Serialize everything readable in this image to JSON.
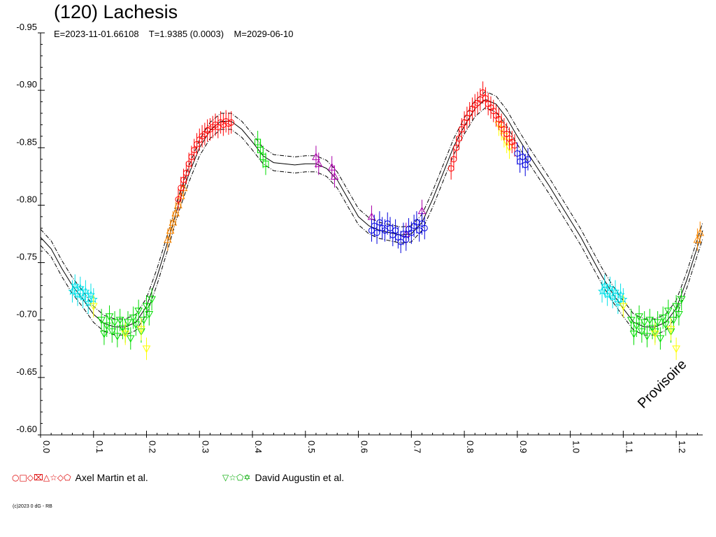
{
  "chart_data": {
    "type": "scatter",
    "title": "(120) Lachesis",
    "subtitle": "E=2023-11-01.66108    T=1.9385 (0.0003)    M=2029-06-10",
    "xlim": [
      0.0,
      1.25
    ],
    "ylim": [
      -0.95,
      -0.6
    ],
    "y_reversed": true,
    "x_ticks": [
      "0.0",
      "0.1",
      "0.2",
      "0.3",
      "0.4",
      "0.5",
      "0.6",
      "0.7",
      "0.8",
      "0.9",
      "1.0",
      "1.1",
      "1.2"
    ],
    "x_tick_values": [
      0.0,
      0.1,
      0.2,
      0.3,
      0.4,
      0.5,
      0.6,
      0.7,
      0.8,
      0.9,
      1.0,
      1.1,
      1.2
    ],
    "y_ticks": [
      "-0.95",
      "-0.90",
      "-0.85",
      "-0.80",
      "-0.75",
      "-0.70",
      "-0.65",
      "-0.60"
    ],
    "y_tick_values": [
      -0.95,
      -0.9,
      -0.85,
      -0.8,
      -0.75,
      -0.7,
      -0.65,
      -0.6
    ],
    "fit_curve": {
      "x": [
        0.0,
        0.02,
        0.04,
        0.06,
        0.08,
        0.1,
        0.12,
        0.14,
        0.16,
        0.18,
        0.2,
        0.22,
        0.24,
        0.26,
        0.28,
        0.3,
        0.32,
        0.34,
        0.36,
        0.38,
        0.4,
        0.42,
        0.44,
        0.46,
        0.48,
        0.5,
        0.52,
        0.54,
        0.56,
        0.58,
        0.6,
        0.62,
        0.64,
        0.66,
        0.68,
        0.7,
        0.72,
        0.74,
        0.76,
        0.78,
        0.8,
        0.82,
        0.84,
        0.86,
        0.88,
        0.9,
        0.92,
        0.94,
        0.96,
        0.98,
        1.0,
        1.02,
        1.04,
        1.06,
        1.08,
        1.1,
        1.12,
        1.14,
        1.16,
        1.18,
        1.2,
        1.22,
        1.25
      ],
      "y": [
        -0.772,
        -0.762,
        -0.745,
        -0.73,
        -0.718,
        -0.705,
        -0.697,
        -0.694,
        -0.694,
        -0.698,
        -0.712,
        -0.738,
        -0.768,
        -0.8,
        -0.827,
        -0.85,
        -0.865,
        -0.873,
        -0.873,
        -0.866,
        -0.855,
        -0.843,
        -0.837,
        -0.836,
        -0.835,
        -0.836,
        -0.836,
        -0.832,
        -0.822,
        -0.806,
        -0.79,
        -0.782,
        -0.778,
        -0.776,
        -0.774,
        -0.775,
        -0.785,
        -0.805,
        -0.828,
        -0.851,
        -0.869,
        -0.884,
        -0.892,
        -0.888,
        -0.876,
        -0.86,
        -0.845,
        -0.831,
        -0.817,
        -0.802,
        -0.787,
        -0.772,
        -0.755,
        -0.738,
        -0.723,
        -0.71,
        -0.698,
        -0.694,
        -0.694,
        -0.698,
        -0.71,
        -0.735,
        -0.778
      ],
      "band": 0.007
    },
    "series": [
      {
        "name": "Axel Martin et al.",
        "color": "#00e0e8",
        "marker": "star",
        "x": [
          0.06,
          0.065,
          0.07,
          0.075,
          0.08,
          0.085,
          0.09,
          0.095,
          0.1,
          1.06,
          1.065,
          1.07,
          1.075,
          1.08,
          1.085,
          1.09,
          1.095,
          1.1
        ],
        "y": [
          -0.725,
          -0.73,
          -0.722,
          -0.728,
          -0.72,
          -0.725,
          -0.715,
          -0.722,
          -0.718,
          -0.725,
          -0.73,
          -0.722,
          -0.728,
          -0.72,
          -0.725,
          -0.715,
          -0.722,
          -0.718
        ]
      },
      {
        "name": "David Augustin et al.",
        "color": "#00dd00",
        "marker": "tri-down",
        "x": [
          0.115,
          0.12,
          0.125,
          0.13,
          0.135,
          0.14,
          0.145,
          0.15,
          0.155,
          0.16,
          0.165,
          0.17,
          0.175,
          0.18,
          0.185,
          0.19,
          0.195,
          0.2,
          0.205,
          0.21,
          1.115,
          1.12,
          1.125,
          1.13,
          1.135,
          1.14,
          1.145,
          1.15,
          1.155,
          1.16,
          1.165,
          1.17,
          1.175,
          1.18,
          1.185,
          1.19,
          1.195,
          1.2,
          1.205,
          1.21
        ],
        "y": [
          -0.7,
          -0.688,
          -0.695,
          -0.703,
          -0.69,
          -0.698,
          -0.686,
          -0.7,
          -0.693,
          -0.69,
          -0.698,
          -0.684,
          -0.702,
          -0.696,
          -0.708,
          -0.69,
          -0.7,
          -0.712,
          -0.705,
          -0.718,
          -0.7,
          -0.688,
          -0.695,
          -0.703,
          -0.69,
          -0.698,
          -0.686,
          -0.7,
          -0.693,
          -0.69,
          -0.698,
          -0.684,
          -0.702,
          -0.696,
          -0.708,
          -0.69,
          -0.7,
          -0.712,
          -0.705,
          -0.718
        ]
      },
      {
        "name": "Axel Martin et al.",
        "color": "#ffff00",
        "marker": "tri-down",
        "x": [
          0.1,
          0.16,
          0.19,
          0.2,
          0.865,
          0.87,
          0.875,
          0.88,
          0.885,
          1.1,
          1.16,
          1.19,
          1.2
        ],
        "y": [
          -0.712,
          -0.688,
          -0.692,
          -0.675,
          -0.87,
          -0.866,
          -0.86,
          -0.855,
          -0.85,
          -0.712,
          -0.688,
          -0.692,
          -0.675
        ]
      },
      {
        "name": "Axel Martin et al.",
        "color": "#ff8800",
        "marker": "tri-up",
        "x": [
          0.24,
          0.245,
          0.25,
          0.255,
          0.26,
          0.265,
          0.27,
          1.24,
          1.245
        ],
        "y": [
          -0.77,
          -0.778,
          -0.785,
          -0.793,
          -0.8,
          -0.808,
          -0.815,
          -0.77,
          -0.776
        ]
      },
      {
        "name": "Axel Martin et al.",
        "color": "#ff0000",
        "marker": "circle",
        "x": [
          0.26,
          0.265,
          0.27,
          0.275,
          0.28,
          0.285,
          0.29,
          0.295,
          0.3,
          0.305,
          0.31,
          0.315,
          0.32,
          0.325,
          0.33,
          0.335,
          0.34,
          0.345,
          0.35,
          0.355,
          0.36,
          0.775,
          0.78,
          0.785,
          0.79,
          0.795,
          0.8,
          0.805,
          0.81,
          0.815,
          0.82,
          0.825,
          0.83,
          0.835,
          0.84,
          0.845,
          0.85,
          0.855,
          0.86,
          0.865,
          0.87,
          0.875,
          0.88,
          0.885,
          0.89,
          0.895
        ],
        "y": [
          -0.805,
          -0.815,
          -0.822,
          -0.828,
          -0.836,
          -0.842,
          -0.848,
          -0.853,
          -0.857,
          -0.86,
          -0.862,
          -0.865,
          -0.866,
          -0.868,
          -0.87,
          -0.868,
          -0.872,
          -0.87,
          -0.873,
          -0.871,
          -0.872,
          -0.832,
          -0.84,
          -0.85,
          -0.858,
          -0.866,
          -0.872,
          -0.876,
          -0.88,
          -0.884,
          -0.887,
          -0.889,
          -0.892,
          -0.898,
          -0.893,
          -0.888,
          -0.885,
          -0.882,
          -0.878,
          -0.875,
          -0.87,
          -0.866,
          -0.862,
          -0.858,
          -0.855,
          -0.852
        ]
      },
      {
        "name": "David Augustin et al.",
        "color": "#00dd00",
        "marker": "square",
        "x": [
          0.41,
          0.415,
          0.42,
          0.425
        ],
        "y": [
          -0.855,
          -0.848,
          -0.842,
          -0.836
        ]
      },
      {
        "name": "David Augustin et al.",
        "color": "#aa00aa",
        "marker": "tri-up",
        "x": [
          0.52,
          0.525,
          0.55,
          0.555,
          0.625,
          0.69,
          0.72
        ],
        "y": [
          -0.842,
          -0.836,
          -0.833,
          -0.825,
          -0.79,
          -0.775,
          -0.795
        ]
      },
      {
        "name": "David Augustin et al.",
        "color": "#0000dd",
        "marker": "circle",
        "x": [
          0.625,
          0.63,
          0.635,
          0.64,
          0.645,
          0.65,
          0.655,
          0.66,
          0.665,
          0.67,
          0.675,
          0.68,
          0.685,
          0.69,
          0.695,
          0.7,
          0.705,
          0.71,
          0.715,
          0.72,
          0.725,
          0.9,
          0.905,
          0.91,
          0.915,
          0.92
        ],
        "y": [
          -0.778,
          -0.782,
          -0.776,
          -0.785,
          -0.78,
          -0.778,
          -0.784,
          -0.78,
          -0.774,
          -0.778,
          -0.772,
          -0.768,
          -0.775,
          -0.77,
          -0.779,
          -0.776,
          -0.782,
          -0.785,
          -0.778,
          -0.784,
          -0.78,
          -0.845,
          -0.838,
          -0.842,
          -0.835,
          -0.84
        ]
      }
    ],
    "legend": [
      {
        "symbols": "○□◇⌧△☆◇⬠",
        "label": "Axel Martin et al."
      },
      {
        "symbols": "▽☆⬠✡",
        "label": "David Augustin et al."
      }
    ]
  },
  "watermark": "Provisoire",
  "copyright": "(c)2023 0 dG - RB"
}
